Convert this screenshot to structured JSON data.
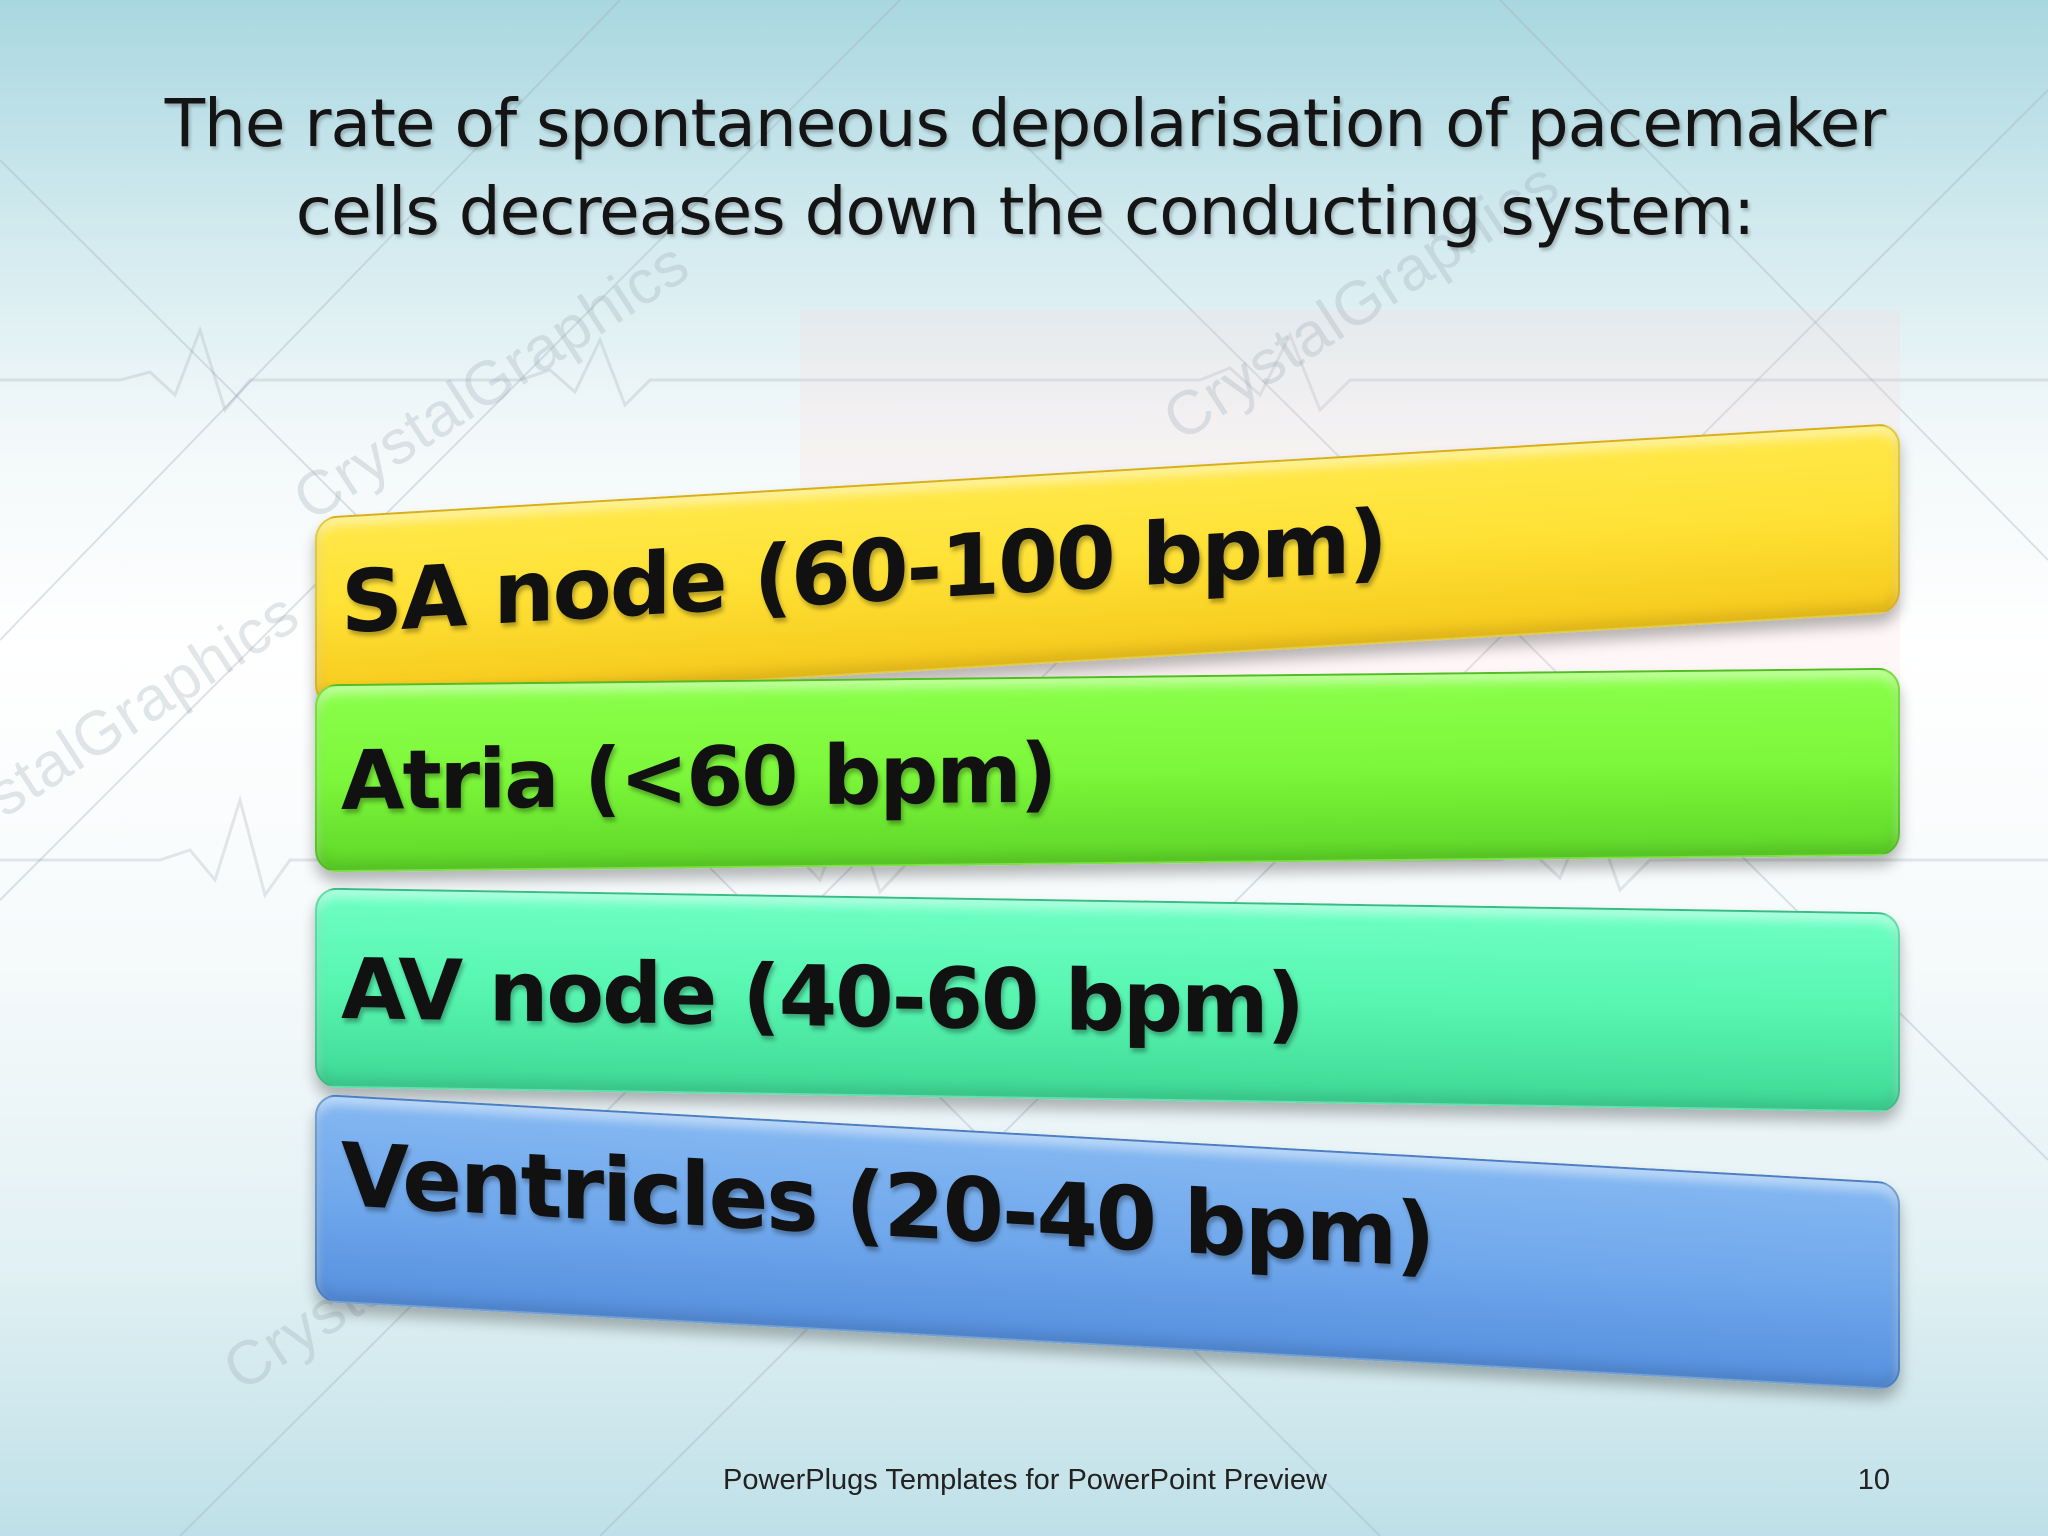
{
  "slide": {
    "title_line1": "The rate of spontaneous depolarisation of pacemaker",
    "title_line2": "cells decreases down the conducting system:",
    "items": [
      {
        "label": "SA node (60-100 bpm)",
        "color": "#ffe236"
      },
      {
        "label": "Atria (<60 bpm)",
        "color": "#7cf73a"
      },
      {
        "label": "AV node (40-60 bpm)",
        "color": "#57f5b0"
      },
      {
        "label": "Ventricles (20-40 bpm)",
        "color": "#70a8ec"
      }
    ],
    "footer": "PowerPlugs Templates for PowerPoint Preview",
    "page_number": "10"
  },
  "watermark": {
    "text": "CrystalGraphics"
  }
}
